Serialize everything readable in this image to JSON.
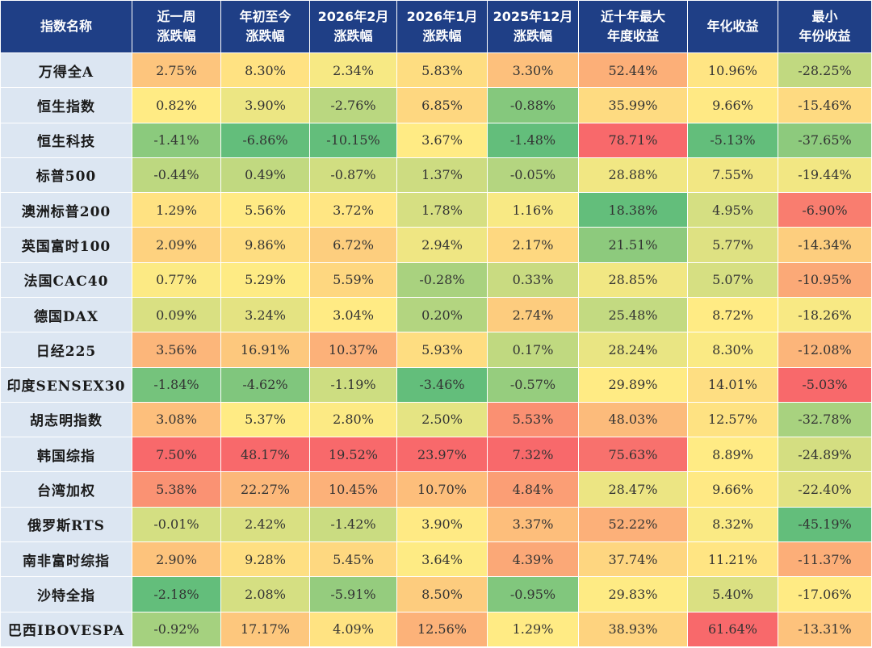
{
  "chart_data": {
    "type": "table",
    "title": "",
    "columns": [
      {
        "label": "指数名称"
      },
      {
        "label": "近一周\n涨跌幅"
      },
      {
        "label": "年初至今\n涨跌幅"
      },
      {
        "label": "2026年2月\n涨跌幅"
      },
      {
        "label": "2026年1月\n涨跌幅"
      },
      {
        "label": "2025年12月\n涨跌幅"
      },
      {
        "label": "近十年最大\n年度收益"
      },
      {
        "label": "年化收益"
      },
      {
        "label": "最小\n年份收益"
      }
    ],
    "rows": [
      {
        "name": "万得全A",
        "values": [
          2.75,
          8.3,
          2.34,
          5.83,
          3.3,
          52.44,
          10.96,
          -28.25
        ]
      },
      {
        "name": "恒生指数",
        "values": [
          0.82,
          3.9,
          -2.76,
          6.85,
          -0.88,
          35.99,
          9.66,
          -15.46
        ]
      },
      {
        "name": "恒生科技",
        "values": [
          -1.41,
          -6.86,
          -10.15,
          3.67,
          -1.48,
          78.71,
          -5.13,
          -37.65
        ]
      },
      {
        "name": "标普500",
        "values": [
          -0.44,
          0.49,
          -0.87,
          1.37,
          -0.05,
          28.88,
          7.55,
          -19.44
        ]
      },
      {
        "name": "澳洲标普200",
        "values": [
          1.29,
          5.56,
          3.72,
          1.78,
          1.16,
          18.38,
          4.95,
          -6.9
        ]
      },
      {
        "name": "英国富时100",
        "values": [
          2.09,
          9.86,
          6.72,
          2.94,
          2.17,
          21.51,
          5.77,
          -14.34
        ]
      },
      {
        "name": "法国CAC40",
        "values": [
          0.77,
          5.29,
          5.59,
          -0.28,
          0.33,
          28.85,
          5.07,
          -10.95
        ]
      },
      {
        "name": "德国DAX",
        "values": [
          0.09,
          3.24,
          3.04,
          0.2,
          2.74,
          25.48,
          8.72,
          -18.26
        ]
      },
      {
        "name": "日经225",
        "values": [
          3.56,
          16.91,
          10.37,
          5.93,
          0.17,
          28.24,
          8.3,
          -12.08
        ]
      },
      {
        "name": "印度SENSEX30",
        "values": [
          -1.84,
          -4.62,
          -1.19,
          -3.46,
          -0.57,
          29.89,
          14.01,
          -5.03
        ]
      },
      {
        "name": "胡志明指数",
        "values": [
          3.08,
          5.37,
          2.8,
          2.5,
          5.53,
          48.03,
          12.57,
          -32.78
        ]
      },
      {
        "name": "韩国综指",
        "values": [
          7.5,
          48.17,
          19.52,
          23.97,
          7.32,
          75.63,
          8.89,
          -24.89
        ]
      },
      {
        "name": "台湾加权",
        "values": [
          5.38,
          22.27,
          10.45,
          10.7,
          4.84,
          28.47,
          9.66,
          -22.4
        ]
      },
      {
        "name": "俄罗斯RTS",
        "values": [
          -0.01,
          2.42,
          -1.42,
          3.9,
          3.37,
          52.22,
          8.32,
          -45.19
        ]
      },
      {
        "name": "南非富时综指",
        "values": [
          2.9,
          9.28,
          5.45,
          3.64,
          4.39,
          37.74,
          11.21,
          -11.37
        ]
      },
      {
        "name": "沙特全指",
        "values": [
          -2.18,
          2.08,
          -5.91,
          8.5,
          -0.95,
          29.83,
          5.4,
          -17.06
        ]
      },
      {
        "name": "巴西IBOVESPA",
        "values": [
          -0.92,
          17.17,
          4.09,
          12.56,
          1.29,
          38.93,
          61.64,
          -13.31
        ]
      }
    ],
    "value_suffix": "%"
  },
  "colors": {
    "header_bg": "#1f3f86",
    "header_text": "#ffffff",
    "name_bg": "#dce6f2",
    "scale_low": "#63be7b",
    "scale_mid": "#ffeb84",
    "scale_high": "#f8696b"
  }
}
